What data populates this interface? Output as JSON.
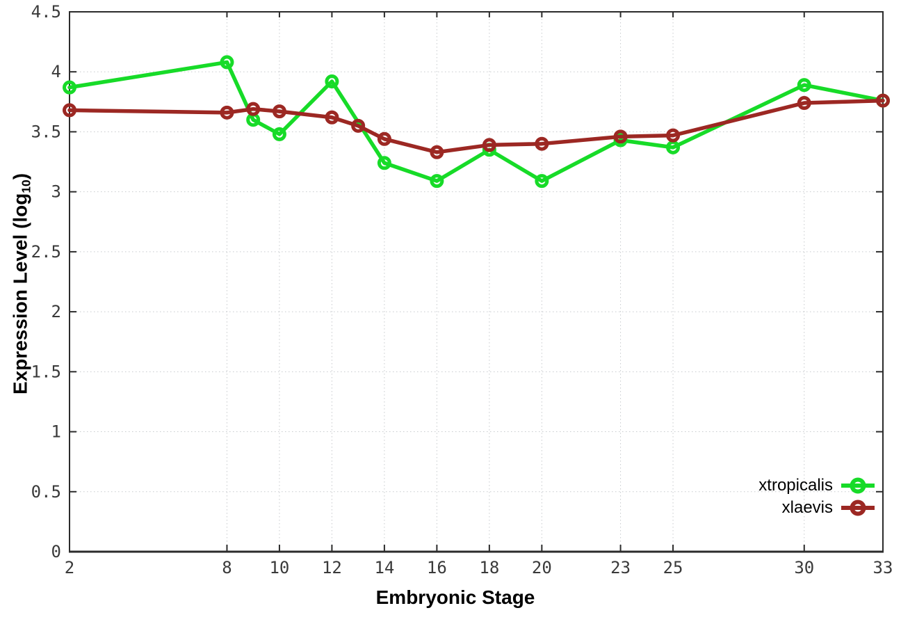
{
  "figure": {
    "background": "#ffffff",
    "xlabel": "Embryonic Stage",
    "ylabel_main": "Expression Level (log",
    "ylabel_sub": "10",
    "ylabel_close": ")"
  },
  "colors": {
    "axis": "#2b2b2b",
    "grid": "#c7cacd",
    "tick_text": "#3a3a3a",
    "xtropicalis": "#17db28",
    "xlaevis": "#9c2823"
  },
  "chart_data": {
    "type": "line",
    "title": "",
    "xlabel": "Embryonic Stage",
    "ylabel": "Expression Level (log10)",
    "xlim": [
      2,
      33
    ],
    "ylim": [
      0,
      4.5
    ],
    "grid": true,
    "legend_position": "bottom-right",
    "x_ticks": [
      2,
      8,
      10,
      12,
      14,
      16,
      18,
      20,
      23,
      25,
      30,
      33
    ],
    "x_tick_labels": [
      "2",
      "8",
      "10",
      "12",
      "14",
      "16",
      "18",
      "20",
      "23",
      "25",
      "30",
      "33"
    ],
    "y_ticks": [
      0,
      0.5,
      1,
      1.5,
      2,
      2.5,
      3,
      3.5,
      4,
      4.5
    ],
    "y_tick_labels": [
      "0",
      "0.5",
      "1",
      "1.5",
      "2",
      "2.5",
      "3",
      "3.5",
      "4",
      "4.5"
    ],
    "series": [
      {
        "name": "xtropicalis",
        "color": "#17db28",
        "marker": "open-circle",
        "x": [
          2,
          8,
          9,
          10,
          12,
          14,
          16,
          18,
          20,
          23,
          25,
          30,
          33
        ],
        "y": [
          3.87,
          4.08,
          3.6,
          3.48,
          3.92,
          3.24,
          3.09,
          3.35,
          3.09,
          3.43,
          3.37,
          3.89,
          3.76
        ]
      },
      {
        "name": "xlaevis",
        "color": "#9c2823",
        "marker": "open-circle",
        "x": [
          2,
          8,
          9,
          10,
          12,
          13,
          14,
          16,
          18,
          20,
          23,
          25,
          30,
          33
        ],
        "y": [
          3.68,
          3.66,
          3.69,
          3.67,
          3.62,
          3.55,
          3.44,
          3.33,
          3.39,
          3.4,
          3.46,
          3.47,
          3.74,
          3.76
        ]
      }
    ]
  }
}
